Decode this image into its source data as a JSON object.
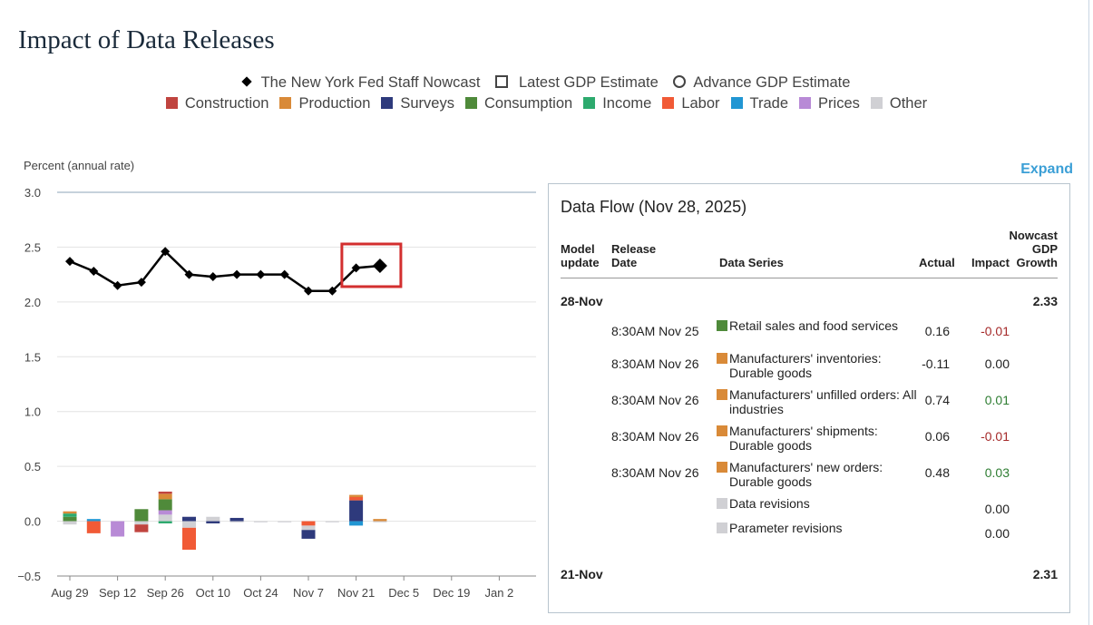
{
  "page": {
    "title": "Impact of Data Releases",
    "expand_label": "Expand"
  },
  "legend": {
    "markers": [
      {
        "label": "The New York Fed Staff Nowcast",
        "shape": "diamond"
      },
      {
        "label": "Latest GDP Estimate",
        "shape": "square"
      },
      {
        "label": "Advance GDP Estimate",
        "shape": "circle"
      }
    ],
    "categories": [
      {
        "label": "Construction",
        "color": "#c0443f"
      },
      {
        "label": "Production",
        "color": "#d98a38"
      },
      {
        "label": "Surveys",
        "color": "#2e3a7c"
      },
      {
        "label": "Consumption",
        "color": "#4f8a3a"
      },
      {
        "label": "Income",
        "color": "#2daa6e"
      },
      {
        "label": "Labor",
        "color": "#f15a36"
      },
      {
        "label": "Trade",
        "color": "#2196d3"
      },
      {
        "label": "Prices",
        "color": "#b88ad6"
      },
      {
        "label": "Other",
        "color": "#d0d0d4"
      }
    ]
  },
  "chart_data": {
    "type": "line",
    "ylabel": "Percent (annual rate)",
    "ylim": [
      -0.5,
      3.0
    ],
    "yticks": [
      "3.0",
      "2.5",
      "2.0",
      "1.5",
      "1.0",
      "0.5",
      "0.0",
      "−0.5"
    ],
    "xticks": [
      "Aug 29",
      "Sep 12",
      "Sep 26",
      "Oct 10",
      "Oct 24",
      "Nov 7",
      "Nov 21",
      "Dec 5",
      "Dec 19",
      "Jan 2"
    ],
    "nowcast": {
      "name": "The New York Fed Staff Nowcast",
      "weeks": [
        0,
        1,
        2,
        3,
        4,
        5,
        6,
        7,
        8,
        9,
        10,
        11,
        12,
        13
      ],
      "values": [
        2.37,
        2.28,
        2.15,
        2.18,
        2.46,
        2.25,
        2.23,
        2.25,
        2.25,
        2.25,
        2.1,
        2.1,
        2.31,
        2.33
      ],
      "highlighted_index": 13
    },
    "contribution_bars": [
      {
        "week": 0,
        "segments": [
          {
            "category": "Consumption",
            "value": 0.04
          },
          {
            "category": "Income",
            "value": 0.03
          },
          {
            "category": "Production",
            "value": 0.02
          },
          {
            "category": "Other",
            "value": -0.03
          }
        ]
      },
      {
        "week": 1,
        "segments": [
          {
            "category": "Trade",
            "value": 0.02
          },
          {
            "category": "Labor",
            "value": -0.11
          }
        ]
      },
      {
        "week": 2,
        "segments": [
          {
            "category": "Prices",
            "value": -0.14
          }
        ]
      },
      {
        "week": 3,
        "segments": [
          {
            "category": "Consumption",
            "value": 0.11
          },
          {
            "category": "Other",
            "value": -0.03
          },
          {
            "category": "Construction",
            "value": -0.07
          }
        ]
      },
      {
        "week": 4,
        "segments": [
          {
            "category": "Other",
            "value": 0.06
          },
          {
            "category": "Prices",
            "value": 0.04
          },
          {
            "category": "Consumption",
            "value": 0.1
          },
          {
            "category": "Production",
            "value": 0.05
          },
          {
            "category": "Construction",
            "value": 0.02
          },
          {
            "category": "Income",
            "value": -0.02
          }
        ]
      },
      {
        "week": 5,
        "segments": [
          {
            "category": "Surveys",
            "value": 0.04
          },
          {
            "category": "Other",
            "value": -0.06
          },
          {
            "category": "Labor",
            "value": -0.2
          }
        ]
      },
      {
        "week": 6,
        "segments": [
          {
            "category": "Other",
            "value": 0.04
          },
          {
            "category": "Surveys",
            "value": -0.02
          }
        ]
      },
      {
        "week": 7,
        "segments": [
          {
            "category": "Surveys",
            "value": 0.03
          },
          {
            "category": "Other",
            "value": -0.01
          }
        ]
      },
      {
        "week": 8,
        "segments": [
          {
            "category": "Other",
            "value": -0.01
          }
        ]
      },
      {
        "week": 9,
        "segments": [
          {
            "category": "Other",
            "value": -0.01
          }
        ]
      },
      {
        "week": 10,
        "segments": [
          {
            "category": "Labor",
            "value": -0.04
          },
          {
            "category": "Other",
            "value": -0.04
          },
          {
            "category": "Surveys",
            "value": -0.08
          }
        ]
      },
      {
        "week": 11,
        "segments": [
          {
            "category": "Other",
            "value": -0.01
          }
        ]
      },
      {
        "week": 12,
        "segments": [
          {
            "category": "Surveys",
            "value": 0.19
          },
          {
            "category": "Labor",
            "value": 0.03
          },
          {
            "category": "Production",
            "value": 0.02
          },
          {
            "category": "Trade",
            "value": -0.04
          }
        ]
      },
      {
        "week": 13,
        "segments": [
          {
            "category": "Production",
            "value": 0.02
          },
          {
            "category": "Other",
            "value": -0.01
          }
        ]
      }
    ]
  },
  "data_flow": {
    "title": "Data Flow (Nov 28, 2025)",
    "headers": {
      "model_update_1": "Model",
      "model_update_2": "update",
      "release_1": "Release",
      "release_2": "Date",
      "series": "Data Series",
      "actual": "Actual",
      "impact": "Impact",
      "nowcast_1": "Nowcast",
      "nowcast_2": "GDP",
      "nowcast_3": "Growth"
    },
    "groups": [
      {
        "update": "28-Nov",
        "nowcast": "2.33",
        "rows": [
          {
            "release": "8:30AM Nov 25",
            "series": "Retail sales and food services",
            "category": "Consumption",
            "color": "#4f8a3a",
            "actual": "0.16",
            "impact": "-0.01",
            "sign": "neg"
          },
          {
            "release": "8:30AM Nov 26",
            "series": "Manufacturers' inventories: Durable goods",
            "category": "Production",
            "color": "#d98a38",
            "actual": "-0.11",
            "impact": "0.00",
            "sign": "zero"
          },
          {
            "release": "8:30AM Nov 26",
            "series": "Manufacturers' unfilled orders: All industries",
            "category": "Production",
            "color": "#d98a38",
            "actual": "0.74",
            "impact": "0.01",
            "sign": "pos"
          },
          {
            "release": "8:30AM Nov 26",
            "series": "Manufacturers' shipments: Durable goods",
            "category": "Production",
            "color": "#d98a38",
            "actual": "0.06",
            "impact": "-0.01",
            "sign": "neg"
          },
          {
            "release": "8:30AM Nov 26",
            "series": "Manufacturers' new orders: Durable goods",
            "category": "Production",
            "color": "#d98a38",
            "actual": "0.48",
            "impact": "0.03",
            "sign": "pos"
          },
          {
            "release": "",
            "series": "Data revisions",
            "category": "Other",
            "color": "#d0d0d4",
            "actual": "",
            "impact": "0.00",
            "sign": "zero"
          },
          {
            "release": "",
            "series": "Parameter revisions",
            "category": "Other",
            "color": "#d0d0d4",
            "actual": "",
            "impact": "0.00",
            "sign": "zero"
          }
        ]
      },
      {
        "update": "21-Nov",
        "nowcast": "2.31",
        "rows": []
      }
    ]
  }
}
